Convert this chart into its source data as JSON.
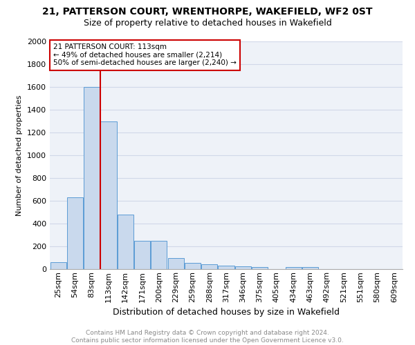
{
  "title": "21, PATTERSON COURT, WRENTHORPE, WAKEFIELD, WF2 0ST",
  "subtitle": "Size of property relative to detached houses in Wakefield",
  "xlabel": "Distribution of detached houses by size in Wakefield",
  "ylabel": "Number of detached properties",
  "footer_line1": "Contains HM Land Registry data © Crown copyright and database right 2024.",
  "footer_line2": "Contains public sector information licensed under the Open Government Licence v3.0.",
  "categories": [
    "25sqm",
    "54sqm",
    "83sqm",
    "113sqm",
    "142sqm",
    "171sqm",
    "200sqm",
    "229sqm",
    "259sqm",
    "288sqm",
    "317sqm",
    "346sqm",
    "375sqm",
    "405sqm",
    "434sqm",
    "463sqm",
    "492sqm",
    "521sqm",
    "551sqm",
    "580sqm",
    "609sqm"
  ],
  "values": [
    62,
    630,
    1600,
    1300,
    480,
    250,
    250,
    100,
    55,
    45,
    30,
    25,
    20,
    0,
    20,
    20,
    0,
    0,
    0,
    0,
    0
  ],
  "bar_color": "#c9d9ed",
  "bar_edge_color": "#5b9bd5",
  "grid_color": "#d0d8e8",
  "bg_color": "#eef2f8",
  "property_line_index": 3,
  "annotation_text_line1": "21 PATTERSON COURT: 113sqm",
  "annotation_text_line2": "← 49% of detached houses are smaller (2,214)",
  "annotation_text_line3": "50% of semi-detached houses are larger (2,240) →",
  "annotation_box_color": "#cc0000",
  "ylim": [
    0,
    2000
  ],
  "yticks": [
    0,
    200,
    400,
    600,
    800,
    1000,
    1200,
    1400,
    1600,
    1800,
    2000
  ],
  "title_fontsize": 10,
  "subtitle_fontsize": 9,
  "ylabel_fontsize": 8,
  "xlabel_fontsize": 9,
  "tick_fontsize": 8,
  "annotation_fontsize": 7.5,
  "footer_fontsize": 6.5,
  "footer_color": "#888888"
}
